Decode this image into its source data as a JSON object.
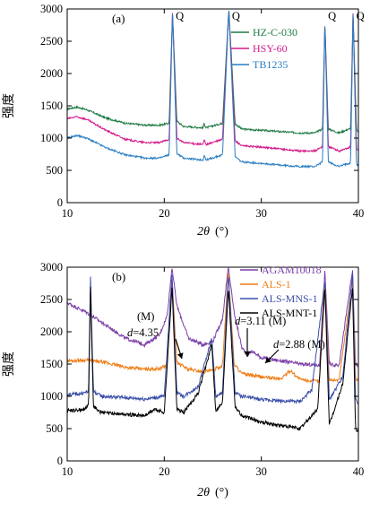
{
  "chart_data": [
    {
      "type": "line",
      "panel_label": "(a)",
      "xlabel_symbol": "2θ",
      "xlabel_unit": "(°)",
      "ylabel": "强度",
      "xlim": [
        10,
        40
      ],
      "ylim": [
        0,
        3000
      ],
      "x_ticks": [
        10,
        20,
        30,
        40
      ],
      "y_ticks": [
        0,
        500,
        1000,
        1500,
        2000,
        2500,
        3000
      ],
      "grid": false,
      "legend_position": "top-right",
      "peak_labels": [
        {
          "text": "Q",
          "x": 20.9
        },
        {
          "text": "Q",
          "x": 26.7
        },
        {
          "text": "Q",
          "x": 36.6
        },
        {
          "text": "Q",
          "x": 39.5
        }
      ],
      "series": [
        {
          "name": "HZ-C-030",
          "color": "#1e7a44",
          "x": [
            10,
            11,
            12,
            14,
            16,
            18,
            19.5,
            20.5,
            20.85,
            21.3,
            22,
            24,
            24.1,
            24.3,
            26,
            26.65,
            27.3,
            28,
            30,
            32,
            34,
            35.5,
            36.3,
            36.55,
            36.9,
            38,
            39.2,
            39.45,
            39.8,
            40
          ],
          "y": [
            1450,
            1480,
            1440,
            1310,
            1230,
            1200,
            1200,
            1230,
            2950,
            1260,
            1180,
            1160,
            1230,
            1160,
            1230,
            3000,
            1220,
            1140,
            1120,
            1100,
            1080,
            1080,
            1140,
            2800,
            1140,
            1080,
            1150,
            2950,
            1130,
            1100
          ]
        },
        {
          "name": "HSY-60",
          "color": "#d4198a",
          "x": [
            10,
            11,
            12,
            14,
            16,
            18,
            19.5,
            20.5,
            20.85,
            21.3,
            22,
            24,
            24.1,
            24.3,
            26,
            26.65,
            27.3,
            28,
            30,
            32,
            34,
            35.5,
            36.3,
            36.55,
            36.9,
            38,
            39.2,
            39.45,
            39.8,
            40
          ],
          "y": [
            1300,
            1330,
            1290,
            1120,
            980,
            930,
            930,
            980,
            2950,
            1000,
            930,
            900,
            980,
            900,
            980,
            3000,
            960,
            880,
            860,
            830,
            800,
            800,
            870,
            2800,
            870,
            800,
            860,
            2950,
            840,
            800
          ]
        },
        {
          "name": "TB1235",
          "color": "#2a7ec2",
          "x": [
            10,
            11,
            12,
            14,
            16,
            18,
            19.5,
            20.5,
            20.85,
            21.3,
            22,
            24,
            24.1,
            24.3,
            26,
            26.65,
            27.3,
            28,
            30,
            32,
            34,
            35.5,
            36.3,
            36.55,
            36.9,
            38,
            39.2,
            39.45,
            39.8,
            40
          ],
          "y": [
            1000,
            1040,
            1000,
            850,
            740,
            690,
            690,
            740,
            2950,
            760,
            690,
            660,
            740,
            660,
            740,
            3000,
            710,
            630,
            610,
            580,
            560,
            560,
            630,
            2800,
            630,
            560,
            620,
            2950,
            600,
            560
          ]
        }
      ]
    },
    {
      "type": "line",
      "panel_label": "(b)",
      "xlabel_symbol": "2θ",
      "xlabel_unit": "(°)",
      "ylabel": "强度",
      "xlim": [
        10,
        40
      ],
      "ylim": [
        0,
        3000
      ],
      "x_ticks": [
        10,
        20,
        30,
        40
      ],
      "y_ticks": [
        0,
        500,
        1000,
        1500,
        2000,
        2500,
        3000
      ],
      "grid": false,
      "legend_position": "top-right",
      "annotations": [
        {
          "prefix": "(M)",
          "italic": "",
          "value": ""
        },
        {
          "prefix": "",
          "italic": "d",
          "value": "=4.35"
        },
        {
          "prefix": "",
          "italic": "d",
          "value": "=3.11 (M)"
        },
        {
          "prefix": "",
          "italic": "d",
          "value": "=2.88 (M)"
        }
      ],
      "series": [
        {
          "name": "AGAM10018",
          "color": "#7b3fa8",
          "x": [
            10,
            12,
            14,
            16,
            18,
            19.5,
            20.3,
            20.8,
            21.3,
            22.5,
            24,
            25,
            26,
            26.6,
            27.2,
            28,
            28.6,
            29,
            30,
            32,
            34,
            36,
            36.55,
            37,
            38,
            39.4,
            39.7,
            40
          ],
          "y": [
            2450,
            2300,
            2100,
            1900,
            1800,
            1950,
            2250,
            3000,
            2400,
            1900,
            1800,
            1850,
            2200,
            3000,
            2300,
            1750,
            1650,
            1700,
            1600,
            1550,
            1500,
            1480,
            2950,
            1500,
            1480,
            2950,
            1500,
            1450
          ]
        },
        {
          "name": "ALS-1",
          "color": "#ef7f1a",
          "x": [
            10,
            12,
            14,
            16,
            18,
            19.5,
            20.3,
            20.8,
            21.3,
            22.5,
            24,
            25,
            26,
            26.6,
            27.2,
            28,
            30,
            32,
            33,
            34,
            36,
            36.55,
            37,
            38,
            39.4,
            39.7,
            40
          ],
          "y": [
            1550,
            1560,
            1520,
            1450,
            1420,
            1430,
            1480,
            2800,
            1520,
            1420,
            1380,
            1400,
            1480,
            2950,
            1500,
            1350,
            1300,
            1270,
            1400,
            1260,
            1230,
            2800,
            1260,
            1250,
            2800,
            1260,
            1250
          ]
        },
        {
          "name": "ALS-MNS-1",
          "color": "#3a4fa8",
          "x": [
            10,
            11.5,
            12.2,
            12.4,
            12.7,
            13.5,
            16,
            18,
            20,
            20.8,
            21.3,
            22,
            23.5,
            24.9,
            25.3,
            26,
            26.6,
            27.3,
            28,
            30,
            32,
            34,
            35.2,
            36.55,
            37,
            38.4,
            39.4,
            39.7,
            40
          ],
          "y": [
            1030,
            1040,
            1080,
            2850,
            1080,
            1000,
            980,
            960,
            1000,
            2900,
            1050,
            1000,
            1150,
            1900,
            1000,
            1050,
            2900,
            1050,
            1000,
            950,
            930,
            920,
            1100,
            2800,
            950,
            1300,
            2900,
            950,
            900
          ]
        },
        {
          "name": "ALS-MNT-1",
          "color": "#000000",
          "x": [
            10,
            11.5,
            12.2,
            12.4,
            12.7,
            13.5,
            16,
            18,
            19,
            20,
            20.8,
            21.3,
            22,
            23.5,
            24.9,
            25.3,
            26,
            26.6,
            27.3,
            28,
            30,
            32,
            34,
            35.8,
            36.55,
            37,
            38.4,
            39.4,
            39.7,
            40
          ],
          "y": [
            780,
            790,
            850,
            2700,
            850,
            750,
            720,
            700,
            800,
            750,
            2700,
            800,
            750,
            1050,
            1800,
            780,
            900,
            2700,
            850,
            700,
            600,
            550,
            500,
            800,
            2700,
            550,
            1200,
            2700,
            500,
            450
          ]
        }
      ]
    }
  ]
}
